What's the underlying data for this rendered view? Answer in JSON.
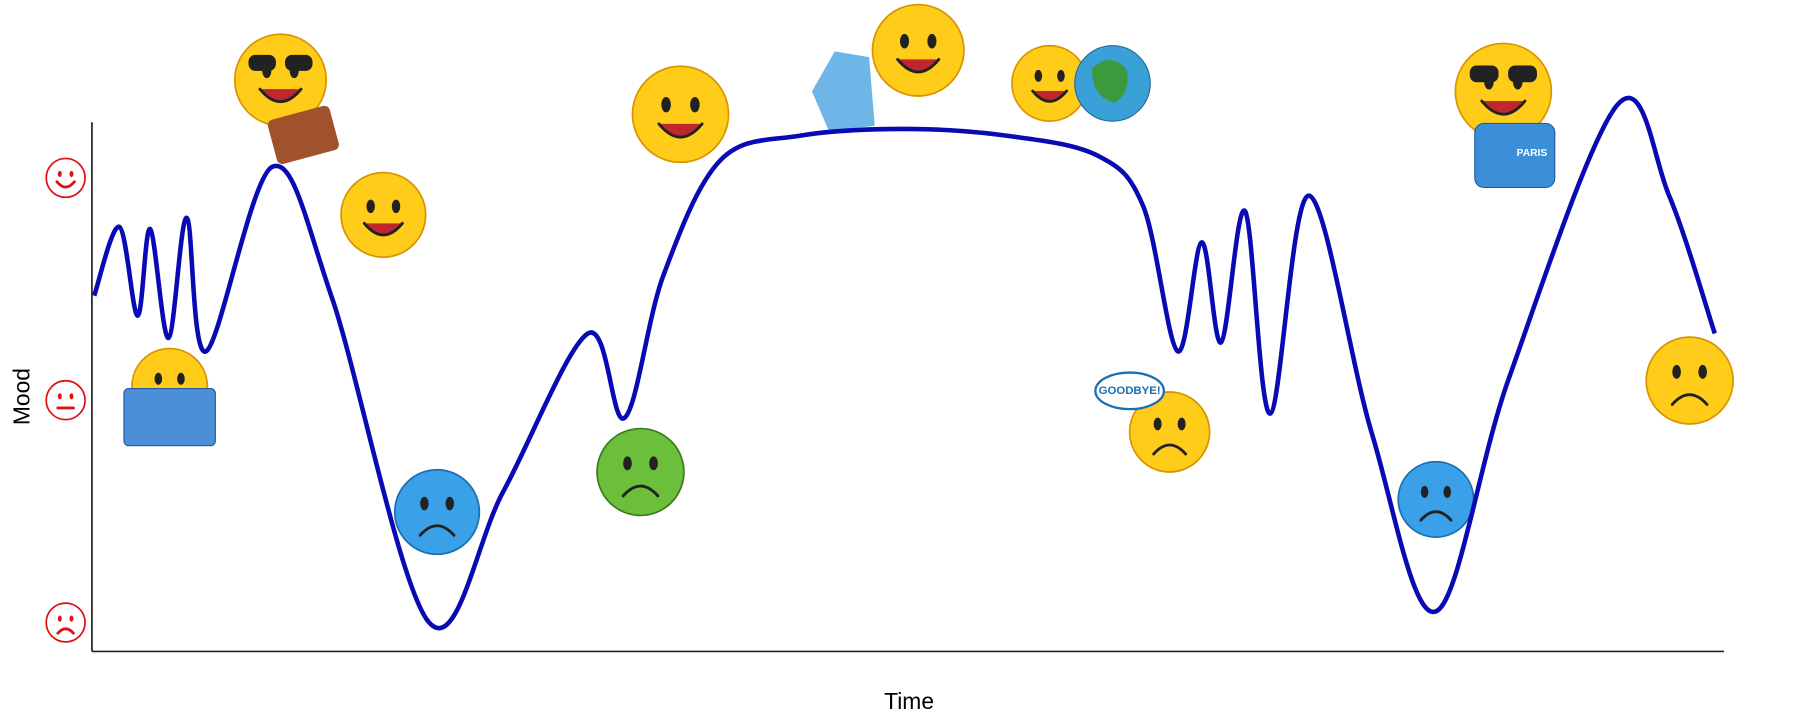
{
  "chart_data": {
    "type": "line",
    "x_label": "Time",
    "y_label": "Mood",
    "xlim": [
      0,
      100
    ],
    "ylim": [
      -1.13,
      1.25
    ],
    "yticks": [
      -1,
      0,
      1
    ],
    "annotations": [
      "GOODBYE!",
      "PARIS"
    ],
    "series": [
      {
        "color": "#0a0ab4",
        "x": [
          0.14,
          1.68,
          2.8,
          3.57,
          4.69,
          5.81,
          7.0,
          11.06,
          14.71,
          20.66,
          25.21,
          30.39,
          32.63,
          35.01,
          38.52,
          43.42,
          49.72,
          56.02,
          61.62,
          64.43,
          66.53,
          68.0,
          69.19,
          70.66,
          72.2,
          74.58,
          78.43,
          82.35,
          86.83,
          93.49,
          96.64,
          99.44
        ],
        "values": [
          0.47,
          0.78,
          0.38,
          0.77,
          0.28,
          0.82,
          0.22,
          1.05,
          0.46,
          -1.0,
          -0.41,
          0.3,
          -0.08,
          0.56,
          1.08,
          1.19,
          1.22,
          1.19,
          1.1,
          0.87,
          0.22,
          0.71,
          0.26,
          0.85,
          -0.06,
          0.92,
          -0.15,
          -0.95,
          0.1,
          1.33,
          0.92,
          0.3
        ]
      }
    ]
  }
}
